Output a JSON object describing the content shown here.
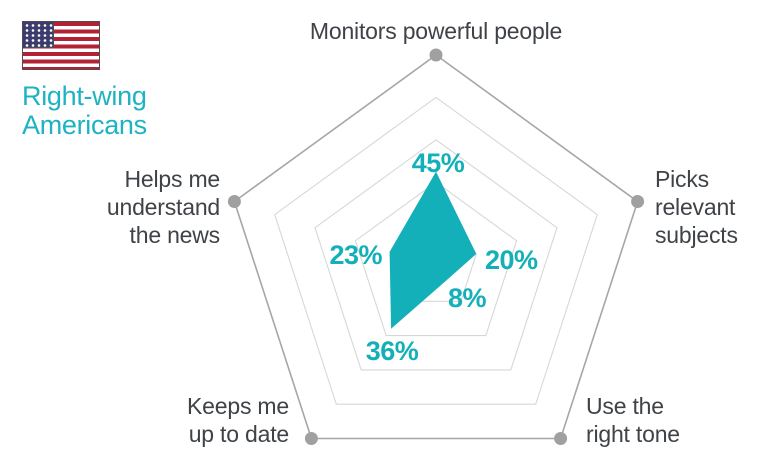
{
  "legend": {
    "flag_icon": "us-flag-icon",
    "label": "Right-wing\nAmericans"
  },
  "chart_data": {
    "type": "radar",
    "title": "",
    "categories": [
      "Monitors powerful people",
      "Picks\nrelevant\nsubjects",
      "Use the\nright tone",
      "Keeps me\nup to date",
      "Helps me\nunderstand\nthe news"
    ],
    "series": [
      {
        "name": "Right-wing Americans",
        "values": [
          45,
          20,
          8,
          36,
          23
        ]
      }
    ],
    "value_labels": [
      "45%",
      "20%",
      "8%",
      "36%",
      "23%"
    ],
    "axis_max": 100,
    "grid": true,
    "grid_levels_pct": [
      20,
      40,
      60,
      80,
      100
    ],
    "legend_position": "top-left",
    "colors": {
      "series_fill": "#13b0b9",
      "value_label": "#13b0b9",
      "grid_inner": "#d7d7d7",
      "grid_outer": "#a6a6a6",
      "vertex_dot": "#a0a0a0",
      "category_label": "#3f4347",
      "legend_text": "#1eb3c4",
      "flag_red": "#b22234",
      "flag_blue": "#3c3b6e"
    }
  }
}
